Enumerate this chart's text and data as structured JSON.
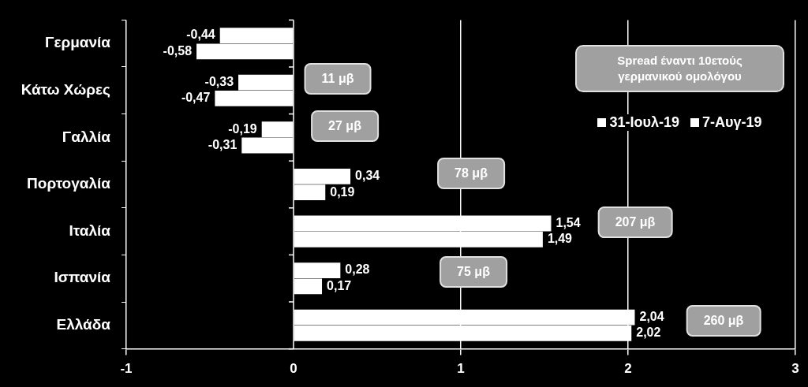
{
  "chart_data": {
    "type": "bar",
    "orientation": "horizontal",
    "categories": [
      "Γερμανία",
      "Κάτω Χώρες",
      "Γαλλία",
      "Πορτογαλία",
      "Ιταλία",
      "Ισπανία",
      "Ελλάδα"
    ],
    "series": [
      {
        "name": "31-Ιουλ-19",
        "color": "#ffffff",
        "values": [
          -0.44,
          -0.33,
          -0.19,
          0.34,
          1.54,
          0.28,
          2.04
        ],
        "value_labels": [
          "-0,44",
          "-0,33",
          "-0,19",
          "0,34",
          "1,54",
          "0,28",
          "2,04"
        ]
      },
      {
        "name": "7-Αυγ-19",
        "color": "#ffffff",
        "values": [
          -0.58,
          -0.47,
          -0.31,
          0.19,
          1.49,
          0.17,
          2.02
        ],
        "value_labels": [
          "-0,58",
          "-0,47",
          "-0,31",
          "0,19",
          "1,49",
          "0,17",
          "2,02"
        ]
      }
    ],
    "xlim": [
      -1,
      3
    ],
    "xticks": [
      -1,
      0,
      1,
      2,
      3
    ],
    "grid": "x",
    "legend": "top right",
    "legend_title": "Spread έναντι 10ετούς γερμανικού ομολόγου",
    "annotations": [
      "11 μβ",
      "27 μβ",
      "78 μβ",
      "207 μβ",
      "75 μβ",
      "260 μβ"
    ]
  }
}
